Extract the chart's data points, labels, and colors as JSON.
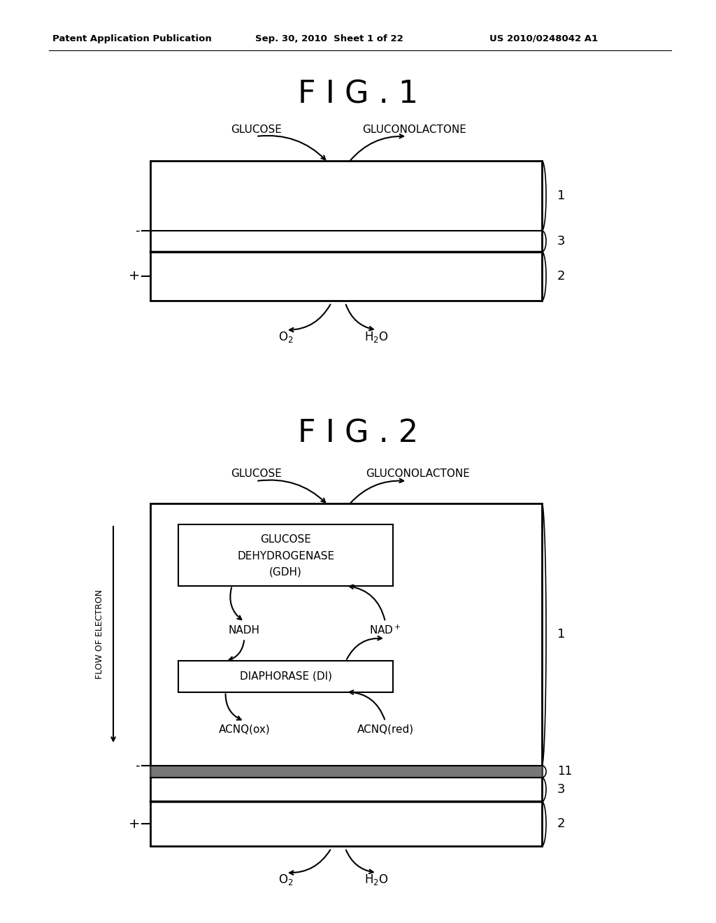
{
  "bg_color": "#ffffff",
  "header_text": "Patent Application Publication",
  "header_date": "Sep. 30, 2010  Sheet 1 of 22",
  "header_patent": "US 2010/0248042 A1",
  "fig1_title": "F I G . 1",
  "fig2_title": "F I G . 2"
}
